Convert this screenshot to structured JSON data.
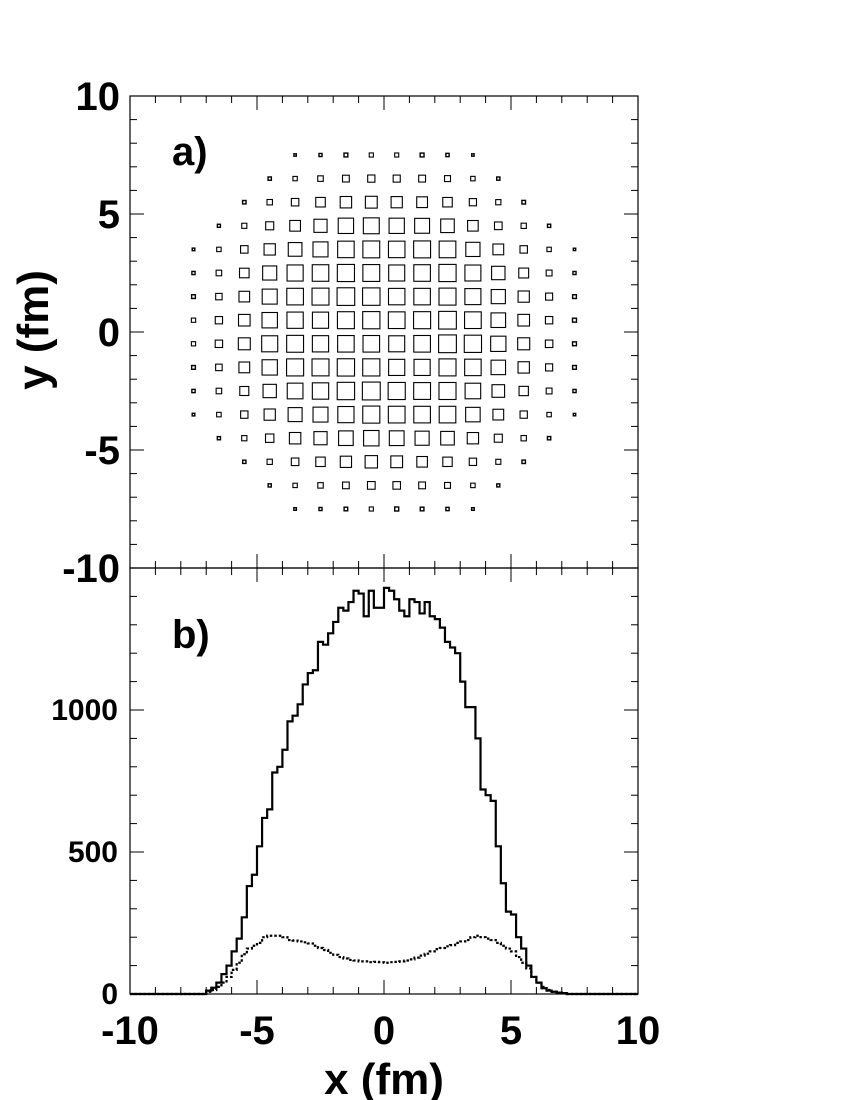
{
  "chart_data": [
    {
      "panel_label": "a)",
      "type": "scatter",
      "xlim": [
        -10,
        10
      ],
      "ylim": [
        -10,
        10
      ],
      "ylabel": "y (fm)",
      "y_ticks": [
        "10",
        "5",
        "0",
        "-5",
        "-10"
      ],
      "y_tick_values": [
        10,
        5,
        0,
        -5,
        -10
      ],
      "grid": false,
      "box_scale_max": 0.76,
      "note": "box-plot density map: squares on a 1 fm grid, size ∝ density",
      "density_model": {
        "core_radius": 5.3,
        "edge_width": 0.75,
        "dip_depth": 0.18,
        "dip_radius": 2.8,
        "extent": 8.5
      }
    },
    {
      "panel_label": "b)",
      "type": "line",
      "xlim": [
        -10,
        10
      ],
      "ylim": [
        0,
        1500
      ],
      "xlabel": "x (fm)",
      "x_ticks": [
        "-10",
        "-5",
        "0",
        "5",
        "10"
      ],
      "x_tick_values": [
        -10,
        -5,
        0,
        5,
        10
      ],
      "y_ticks": [
        "1000",
        "500",
        "0"
      ],
      "y_tick_values": [
        1000,
        500,
        0
      ],
      "grid": false,
      "bin_width": 0.2,
      "series": [
        {
          "style": "solid",
          "x": [
            -7.0,
            -6.8,
            -6.6,
            -6.4,
            -6.2,
            -6.0,
            -5.8,
            -5.6,
            -5.4,
            -5.2,
            -5.0,
            -4.8,
            -4.6,
            -4.4,
            -4.2,
            -4.0,
            -3.8,
            -3.6,
            -3.4,
            -3.2,
            -3.0,
            -2.8,
            -2.6,
            -2.4,
            -2.2,
            -2.0,
            -1.8,
            -1.6,
            -1.4,
            -1.2,
            -1.0,
            -0.8,
            -0.6,
            -0.4,
            -0.2,
            0.0,
            0.2,
            0.4,
            0.6,
            0.8,
            1.0,
            1.2,
            1.4,
            1.6,
            1.8,
            2.0,
            2.2,
            2.4,
            2.6,
            2.8,
            3.0,
            3.2,
            3.4,
            3.6,
            3.8,
            4.0,
            4.2,
            4.4,
            4.6,
            4.8,
            5.0,
            5.2,
            5.4,
            5.6,
            5.8,
            6.0,
            6.2,
            6.4,
            6.6,
            6.8,
            7.0,
            7.2
          ],
          "values": [
            12,
            22,
            40,
            70,
            100,
            150,
            195,
            270,
            380,
            420,
            520,
            620,
            650,
            780,
            800,
            860,
            960,
            980,
            1020,
            1090,
            1130,
            1140,
            1240,
            1230,
            1270,
            1310,
            1360,
            1350,
            1380,
            1420,
            1410,
            1330,
            1420,
            1360,
            1360,
            1430,
            1420,
            1390,
            1350,
            1330,
            1390,
            1380,
            1340,
            1380,
            1330,
            1320,
            1290,
            1240,
            1220,
            1200,
            1100,
            1010,
            1010,
            900,
            720,
            700,
            680,
            520,
            390,
            290,
            280,
            200,
            160,
            100,
            60,
            40,
            20,
            12,
            8,
            5,
            3,
            0
          ]
        },
        {
          "style": "dotted",
          "x": [
            -7.0,
            -6.8,
            -6.6,
            -6.4,
            -6.2,
            -6.0,
            -5.8,
            -5.6,
            -5.4,
            -5.2,
            -5.0,
            -4.8,
            -4.6,
            -4.4,
            -4.2,
            -4.0,
            -3.8,
            -3.6,
            -3.4,
            -3.2,
            -3.0,
            -2.8,
            -2.6,
            -2.4,
            -2.2,
            -2.0,
            -1.8,
            -1.6,
            -1.4,
            -1.2,
            -1.0,
            -0.8,
            -0.6,
            -0.4,
            -0.2,
            0.0,
            0.2,
            0.4,
            0.6,
            0.8,
            1.0,
            1.2,
            1.4,
            1.6,
            1.8,
            2.0,
            2.2,
            2.4,
            2.6,
            2.8,
            3.0,
            3.2,
            3.4,
            3.6,
            3.8,
            4.0,
            4.2,
            4.4,
            4.6,
            4.8,
            5.0,
            5.2,
            5.4,
            5.6,
            5.8,
            6.0,
            6.2,
            6.4,
            6.6,
            6.8,
            7.0,
            7.2
          ],
          "values": [
            8,
            14,
            25,
            40,
            60,
            85,
            110,
            140,
            160,
            170,
            180,
            200,
            205,
            205,
            205,
            200,
            190,
            188,
            185,
            182,
            178,
            170,
            162,
            155,
            145,
            138,
            130,
            125,
            120,
            118,
            115,
            115,
            112,
            113,
            112,
            110,
            112,
            113,
            115,
            118,
            122,
            128,
            135,
            142,
            150,
            158,
            162,
            168,
            172,
            180,
            185,
            190,
            200,
            205,
            200,
            195,
            190,
            180,
            170,
            160,
            150,
            130,
            110,
            90,
            60,
            40,
            25,
            14,
            8,
            5,
            3,
            0
          ]
        }
      ]
    }
  ]
}
